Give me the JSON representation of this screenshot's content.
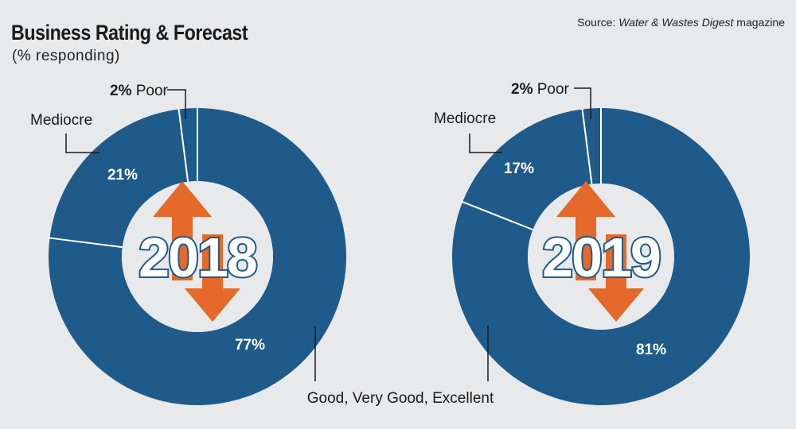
{
  "header": {
    "title": "Business Rating & Forecast",
    "subtitle": "(% responding)",
    "source_prefix": "Source: ",
    "source_publication": "Water & Wastes Digest",
    "source_suffix": " magazine"
  },
  "colors": {
    "segment": "#1e5b8a",
    "separator": "#ffffff",
    "center_fill": "#e8e9eb",
    "arrow": "#e4692a",
    "year_fill": "#ffffff",
    "year_stroke": "#1e5b8a",
    "leader": "#1a1a1a"
  },
  "shared_label": "Good, Very Good, Excellent",
  "chart_data": [
    {
      "type": "pie",
      "variant": "donut",
      "year_label": "2018",
      "slices": [
        {
          "label": "Poor",
          "value": 2,
          "value_text": "2%"
        },
        {
          "label": "Mediocre",
          "value": 21,
          "value_text": "21%"
        },
        {
          "label": "Good, Very Good, Excellent",
          "value": 77,
          "value_text": "77%"
        }
      ]
    },
    {
      "type": "pie",
      "variant": "donut",
      "year_label": "2019",
      "slices": [
        {
          "label": "Poor",
          "value": 2,
          "value_text": "2%"
        },
        {
          "label": "Mediocre",
          "value": 17,
          "value_text": "17%"
        },
        {
          "label": "Good, Very Good, Excellent",
          "value": 81,
          "value_text": "81%"
        }
      ]
    }
  ]
}
